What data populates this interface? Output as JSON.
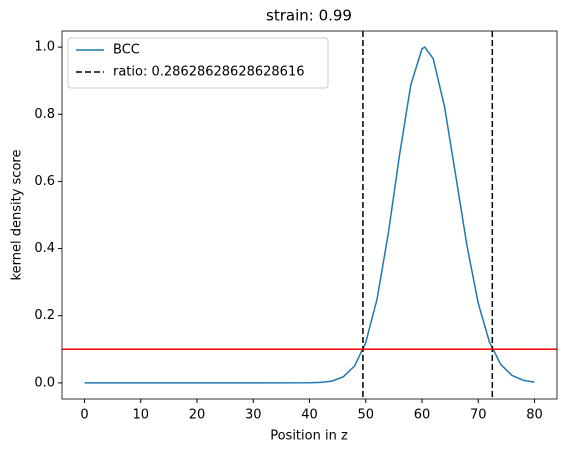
{
  "chart_data": {
    "type": "line",
    "title": "strain: 0.99",
    "xlabel": "Position in z",
    "ylabel": "kernel density score",
    "series": [
      {
        "name": "BCC",
        "color": "#1f77b4",
        "x": [
          0,
          10,
          20,
          30,
          40,
          42,
          44,
          46,
          48,
          50,
          52,
          54,
          56,
          58,
          60,
          60.5,
          62,
          64,
          66,
          68,
          70,
          72,
          74,
          76,
          78,
          80
        ],
        "values": [
          0,
          0,
          0,
          0,
          0.0003,
          0.0014,
          0.0053,
          0.018,
          0.05,
          0.12,
          0.249,
          0.444,
          0.678,
          0.887,
          0.995,
          1.0,
          0.965,
          0.823,
          0.617,
          0.408,
          0.237,
          0.121,
          0.055,
          0.022,
          0.0076,
          0.0023
        ]
      }
    ],
    "vlines": {
      "name": "ratio: 0.28628628628628616",
      "color": "#000000",
      "values": [
        49.5,
        72.5
      ]
    },
    "hline": {
      "value": 0.1,
      "color": "#ff0000"
    },
    "xlim": [
      -4,
      84
    ],
    "ylim": [
      -0.048,
      1.048
    ],
    "xticks": [
      0,
      10,
      20,
      30,
      40,
      50,
      60,
      70,
      80
    ],
    "yticks": [
      {
        "value": 0,
        "label": "0.0"
      },
      0.2,
      0.4,
      0.6,
      0.8,
      {
        "value": 1,
        "label": "1.0"
      }
    ],
    "legend": "upper left"
  }
}
